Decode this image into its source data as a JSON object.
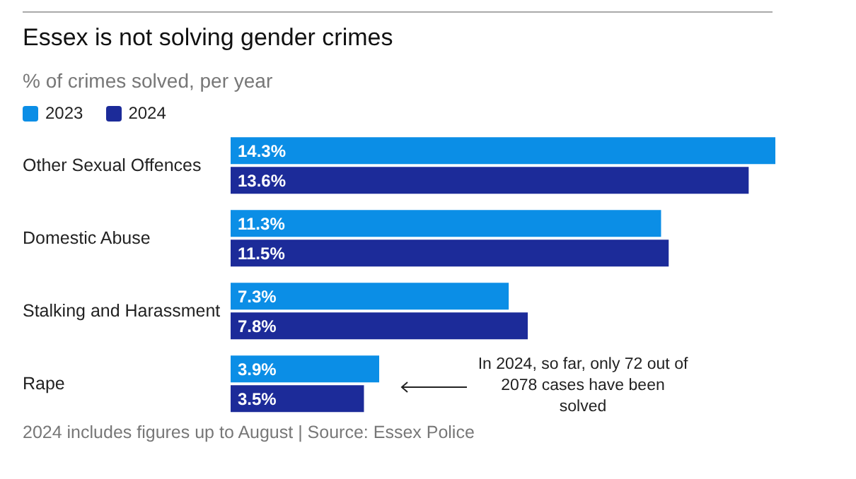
{
  "chart_data": {
    "type": "bar",
    "orientation": "horizontal",
    "title": "Essex is not solving gender crimes",
    "subtitle": "% of crimes solved, per year",
    "categories": [
      "Other Sexual Offences",
      "Domestic Abuse",
      "Stalking and Harassment",
      "Rape"
    ],
    "series": [
      {
        "name": "2023",
        "color": "#0b8ee6",
        "values": [
          14.3,
          11.3,
          7.3,
          3.9
        ],
        "value_labels": [
          "14.3%",
          "11.3%",
          "7.3%",
          "3.9%"
        ]
      },
      {
        "name": "2024",
        "color": "#1c2b99",
        "values": [
          13.6,
          11.5,
          7.8,
          3.5
        ],
        "value_labels": [
          "13.6%",
          "11.5%",
          "7.8%",
          "3.5%"
        ]
      }
    ],
    "legend": "top left",
    "grid": false,
    "annotations": [
      "In 2024, so far, only 72 out of 2078 cases have been solved",
      "2024 includes figures up to August | Source: Essex Police"
    ]
  }
}
